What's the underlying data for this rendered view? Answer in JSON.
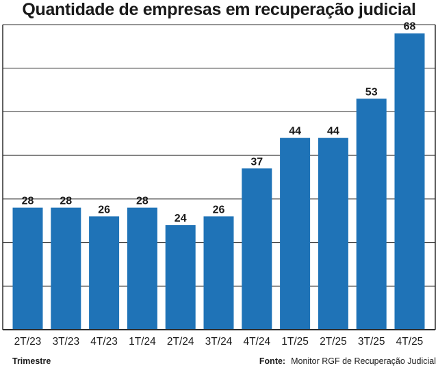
{
  "chart_data": {
    "type": "bar",
    "title": "Quantidade de empresas em recuperação judicial",
    "categories": [
      "2T/23",
      "3T/23",
      "4T/23",
      "1T/24",
      "2T/24",
      "3T/24",
      "4T/24",
      "1T/25",
      "2T/25",
      "3T/25",
      "4T/25"
    ],
    "values": [
      28,
      28,
      26,
      28,
      24,
      26,
      37,
      44,
      44,
      53,
      68
    ],
    "xlabel": "Trimestre",
    "ylabel": "",
    "ylim": [
      0,
      70
    ],
    "grid": true,
    "bar_color": "#1f73b7"
  },
  "footer": {
    "xlabel": "Trimestre",
    "source_label": "Fonte:",
    "source_text": "Monitor RGF de Recuperação Judicial"
  }
}
